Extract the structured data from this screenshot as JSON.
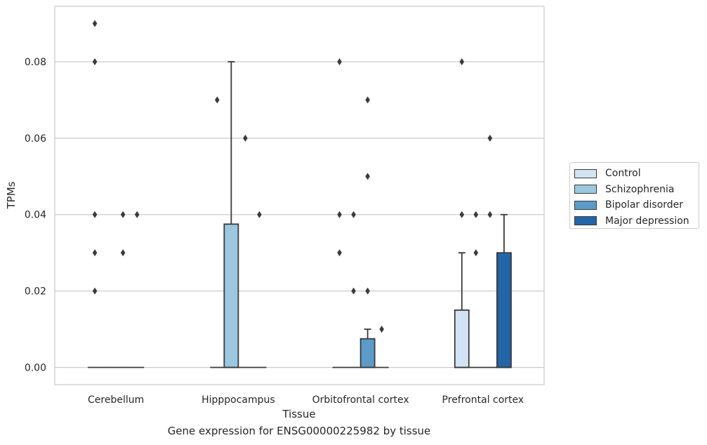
{
  "chart_data": {
    "type": "box",
    "title": "",
    "xlabel": "Tissue",
    "ylabel": "TPMs",
    "caption": "Gene expression for ENSG00000225982 by tissue",
    "categories": [
      "Cerebellum",
      "Hipppocampus",
      "Orbitofrontal cortex",
      "Prefrontal cortex"
    ],
    "ylim": [
      -0.0045,
      0.0945
    ],
    "yticks": [
      "0.00",
      "0.02",
      "0.04",
      "0.06",
      "0.08"
    ],
    "grid": true,
    "legend_position": "right",
    "series": [
      {
        "name": "Control",
        "color": "#d2e3f3",
        "boxes": [
          {
            "q1": 0,
            "median": 0,
            "q3": 0,
            "whislo": 0,
            "whishi": 0,
            "outliers": [
              0.09,
              0.08,
              0.04,
              0.03,
              0.02
            ]
          },
          {
            "q1": 0,
            "median": 0,
            "q3": 0,
            "whislo": 0,
            "whishi": 0,
            "outliers": [
              0.07
            ]
          },
          {
            "q1": 0,
            "median": 0,
            "q3": 0,
            "whislo": 0,
            "whishi": 0,
            "outliers": [
              0.08,
              0.04,
              0.03
            ]
          },
          {
            "q1": 0,
            "median": 0,
            "q3": 0.015,
            "whislo": 0,
            "whishi": 0.03,
            "outliers": [
              0.08,
              0.04
            ]
          }
        ]
      },
      {
        "name": "Schizophrenia",
        "color": "#9ac8e0",
        "boxes": [
          {
            "q1": 0,
            "median": 0,
            "q3": 0,
            "whislo": 0,
            "whishi": 0,
            "outliers": []
          },
          {
            "q1": 0,
            "median": 0,
            "q3": 0.0375,
            "whislo": 0,
            "whishi": 0.08,
            "outliers": []
          },
          {
            "q1": 0,
            "median": 0,
            "q3": 0,
            "whislo": 0,
            "whishi": 0,
            "outliers": [
              0.04,
              0.02
            ]
          },
          {
            "q1": 0,
            "median": 0,
            "q3": 0,
            "whislo": 0,
            "whishi": 0,
            "outliers": [
              0.04,
              0.03
            ]
          }
        ]
      },
      {
        "name": "Bipolar disorder",
        "color": "#5b9bc9",
        "boxes": [
          {
            "q1": 0,
            "median": 0,
            "q3": 0,
            "whislo": 0,
            "whishi": 0,
            "outliers": [
              0.04,
              0.03
            ]
          },
          {
            "q1": 0,
            "median": 0,
            "q3": 0,
            "whislo": 0,
            "whishi": 0,
            "outliers": [
              0.06
            ]
          },
          {
            "q1": 0,
            "median": 0,
            "q3": 0.0075,
            "whislo": 0,
            "whishi": 0.01,
            "outliers": [
              0.07,
              0.05,
              0.02
            ]
          },
          {
            "q1": 0,
            "median": 0,
            "q3": 0,
            "whislo": 0,
            "whishi": 0,
            "outliers": [
              0.06,
              0.04
            ]
          }
        ]
      },
      {
        "name": "Major depression",
        "color": "#2265a8",
        "boxes": [
          {
            "q1": 0,
            "median": 0,
            "q3": 0,
            "whislo": 0,
            "whishi": 0,
            "outliers": [
              0.04
            ]
          },
          {
            "q1": 0,
            "median": 0,
            "q3": 0,
            "whislo": 0,
            "whishi": 0,
            "outliers": [
              0.04
            ]
          },
          {
            "q1": 0,
            "median": 0,
            "q3": 0,
            "whislo": 0,
            "whishi": 0,
            "outliers": [
              0.01
            ]
          },
          {
            "q1": 0,
            "median": 0,
            "q3": 0.03,
            "whislo": 0,
            "whishi": 0.04,
            "outliers": []
          }
        ]
      }
    ]
  }
}
